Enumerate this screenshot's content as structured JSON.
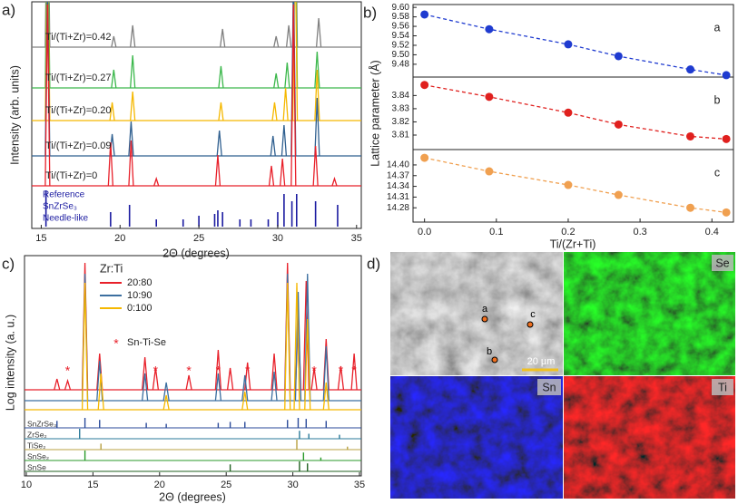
{
  "chart_data": [
    {
      "type": "stack",
      "panel": "a)",
      "xlabel": "2Θ (degrees)",
      "ylabel": "Intensity (arb. units)",
      "xlim": [
        14.4,
        35.3
      ],
      "xticks": [
        15,
        20,
        25,
        30,
        35
      ],
      "series": [
        {
          "name": "Ti/(Ti+Zr)=0.42",
          "color": "#808080",
          "x": [
            15.4,
            19.6,
            20.8,
            26.5,
            29.9,
            30.7,
            31.1,
            32.6
          ],
          "values": [
            5,
            0.3,
            0.6,
            0.5,
            0.3,
            0.6,
            5,
            0.8
          ]
        },
        {
          "name": "Ti/(Ti+Zr)=0.27",
          "color": "#3cb84c",
          "x": [
            15.4,
            19.6,
            20.8,
            26.4,
            29.9,
            30.6,
            31.1,
            32.5
          ],
          "values": [
            5,
            0.5,
            0.9,
            0.6,
            0.4,
            0.7,
            5,
            1.0
          ]
        },
        {
          "name": "Ti/(Ti+Zr)=0.20",
          "color": "#f5b800",
          "x": [
            15.4,
            19.5,
            20.8,
            26.4,
            29.8,
            30.5,
            31.1,
            32.5
          ],
          "values": [
            5,
            0.5,
            0.8,
            0.5,
            0.5,
            0.9,
            5,
            1.4
          ]
        },
        {
          "name": "Ti/(Ti+Zr)=0.09",
          "color": "#2f5f8f",
          "x": [
            15.4,
            19.5,
            20.7,
            26.3,
            29.7,
            30.4,
            31.0,
            32.5
          ],
          "values": [
            5,
            0.6,
            0.95,
            0.7,
            0.55,
            0.85,
            5,
            1.6
          ]
        },
        {
          "name": "Ti/(Ti+Zr)=0",
          "color": "#e8202a",
          "x": [
            15.4,
            19.4,
            20.7,
            22.3,
            26.2,
            29.6,
            30.3,
            31.0,
            32.4,
            33.6
          ],
          "values": [
            5,
            1.2,
            1.25,
            0.2,
            0.85,
            0.55,
            0.75,
            5,
            1.1,
            0.2
          ]
        }
      ],
      "reference": {
        "labels": [
          "Reference",
          "SnZrSe₃",
          "Needle-like"
        ],
        "color": "#1a1aa0",
        "x": [
          15.3,
          19.4,
          20.6,
          22.3,
          24.0,
          25.0,
          26.0,
          26.2,
          26.5,
          27.6,
          28.3,
          29.4,
          30.0,
          30.4,
          30.9,
          31.2,
          32.4,
          33.8
        ],
        "values": [
          1.0,
          0.4,
          0.6,
          0.2,
          0.2,
          0.3,
          0.35,
          0.45,
          0.4,
          0.2,
          0.2,
          0.2,
          0.4,
          0.9,
          0.7,
          0.9,
          0.7,
          0.6
        ]
      }
    },
    {
      "type": "scatter",
      "panel": "b)",
      "xlabel": "Ti/(Zr+Ti)",
      "ylabel": "Lattice parameter (Å)",
      "xlim": [
        -0.016,
        0.43
      ],
      "xticks": [
        {
          "value": 0,
          "label": "0.0"
        },
        0.1,
        0.2,
        0.3,
        0.4
      ],
      "x": [
        0,
        0.09,
        0.2,
        0.27,
        0.37,
        0.42
      ],
      "subplots": [
        {
          "label": "a",
          "color": "#1f3bd0",
          "values": [
            9.585,
            9.554,
            9.522,
            9.497,
            9.469,
            9.457
          ],
          "ylim": [
            9.453,
            9.606
          ],
          "yticks": [
            9.48,
            {
              "value": 9.5,
              "label": "9.50"
            },
            9.52,
            9.54,
            9.56,
            9.58,
            {
              "value": 9.6,
              "label": "9.60"
            }
          ]
        },
        {
          "label": "b",
          "color": "#e0201e",
          "values": [
            3.848,
            3.839,
            3.827,
            3.818,
            3.809,
            3.807
          ],
          "ylim": [
            3.799,
            3.854
          ],
          "yticks": [
            3.81,
            3.82,
            3.83,
            3.84
          ]
        },
        {
          "label": "c",
          "color": "#f0a050",
          "values": [
            14.42,
            14.382,
            14.344,
            14.316,
            14.28,
            14.267
          ],
          "ylim": [
            14.24,
            14.443
          ],
          "yticks": [
            14.28,
            14.31,
            14.34,
            14.37,
            {
              "value": 14.4,
              "label": "14.40"
            }
          ]
        }
      ]
    },
    {
      "type": "logstack",
      "panel": "c)",
      "xlabel": "2Θ (degrees)",
      "ylabel": "Log intensity (a. u.)",
      "xlim": [
        10,
        35
      ],
      "xticks": [
        10,
        15,
        20,
        25,
        30,
        35
      ],
      "legend_title": "Zr:Ti",
      "series": [
        {
          "name": "20:80",
          "color": "#e8202a",
          "x": [
            12.3,
            13.1,
            14.4,
            15.5,
            18.9,
            19.7,
            22.2,
            24.4,
            25.3,
            26.6,
            28.6,
            29.6,
            30.4,
            31.0,
            31.6,
            32.5,
            33.6,
            34.6
          ],
          "values": [
            0.6,
            0.5,
            7,
            2,
            1.8,
            1.2,
            0.8,
            2.2,
            1.2,
            1.5,
            2,
            7,
            4,
            6,
            1.2,
            2.8,
            1.3,
            2
          ]
        },
        {
          "name": "10:90",
          "color": "#3c6fa0",
          "x": [
            14.4,
            15.5,
            18.9,
            20.5,
            24.4,
            26.4,
            28.6,
            29.6,
            30.4,
            31.1,
            32.5
          ],
          "values": [
            7,
            2.2,
            1.5,
            1,
            1.5,
            1.4,
            1.6,
            7,
            6,
            7,
            3
          ]
        },
        {
          "name": "0:100",
          "color": "#f5b800",
          "x": [
            14.4,
            15.6,
            20.5,
            26.4,
            29.6,
            30.3,
            31.1,
            32.5
          ],
          "values": [
            7,
            2,
            0.8,
            1,
            7,
            7,
            5,
            1.5
          ]
        }
      ],
      "marker_label": "Sn-Ti-Se",
      "marker_color": "#e8202a",
      "markers_x": [
        13.1,
        19.7,
        22.2,
        24.4,
        26.6,
        31.6,
        33.6,
        34.6
      ],
      "references": [
        {
          "name": "SnZrSe₃",
          "color": "#2a4a9a",
          "x": [
            12.3,
            14.4,
            15.5,
            19.0,
            20.5,
            24.4,
            25.3,
            26.4,
            29.6,
            30.4,
            31.0,
            32.5
          ],
          "values": [
            0.7,
            1.0,
            0.8,
            0.5,
            0.4,
            0.5,
            0.6,
            0.6,
            0.8,
            1.0,
            0.9,
            0.7
          ]
        },
        {
          "name": "ZrSe₂",
          "color": "#2a7a9a",
          "x": [
            14.0,
            30.5,
            31.2,
            33.5
          ],
          "values": [
            1.0,
            0.8,
            0.5,
            0.4
          ]
        },
        {
          "name": "TiSe₂",
          "color": "#b8a040",
          "x": [
            15.6,
            30.3,
            34.1
          ],
          "values": [
            0.6,
            1.0,
            0.3
          ]
        },
        {
          "name": "SnSe₂",
          "color": "#2a9a2a",
          "x": [
            14.4,
            30.8,
            32.1
          ],
          "values": [
            1.0,
            0.8,
            0.3
          ]
        },
        {
          "name": "SnSe",
          "color": "#206020",
          "x": [
            25.3,
            30.5,
            31.1
          ],
          "values": [
            0.7,
            1.0,
            0.8
          ]
        }
      ]
    },
    {
      "type": "image",
      "panel": "d)",
      "scale_bar": "20 µm",
      "points": [
        "a",
        "b",
        "c"
      ],
      "maps": [
        "Se",
        "Sn",
        "Ti"
      ]
    }
  ]
}
